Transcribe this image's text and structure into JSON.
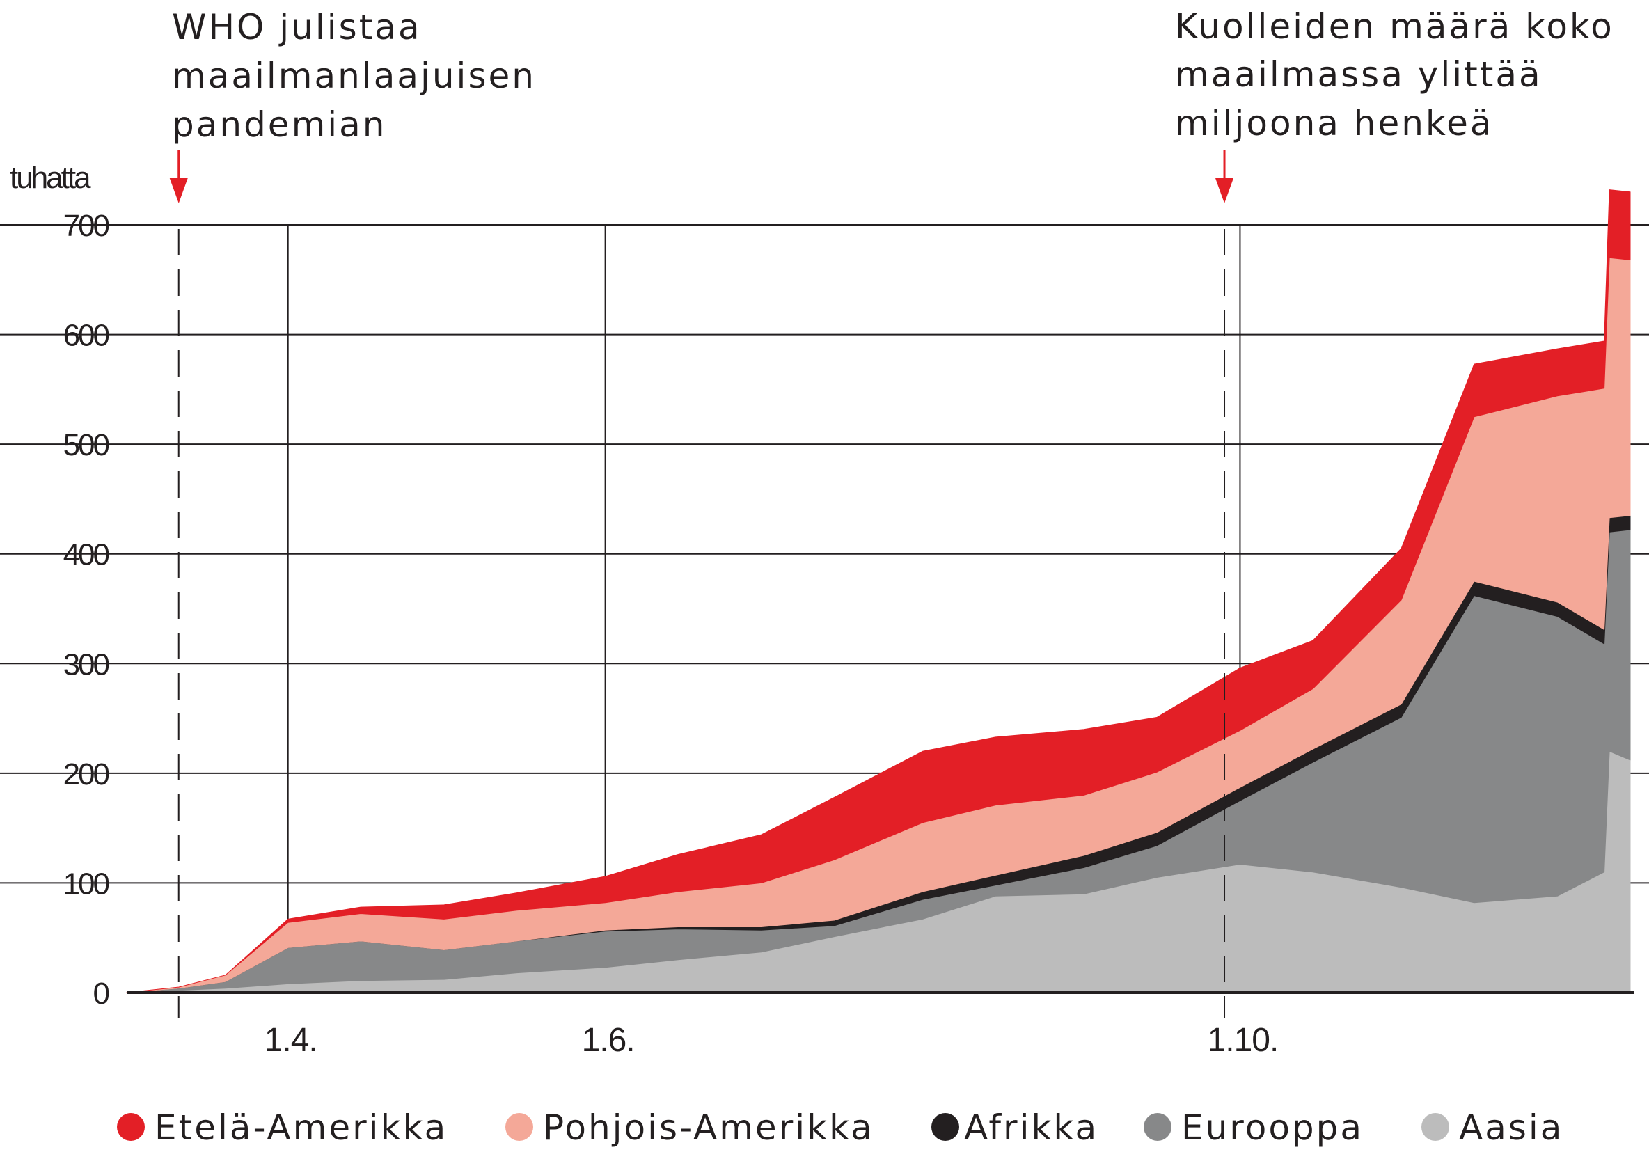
{
  "chart_data": {
    "type": "area",
    "stacked": true,
    "ylabel": "tuhatta",
    "ylim": [
      0,
      700
    ],
    "yticks": [
      0,
      100,
      200,
      300,
      400,
      500,
      600,
      700
    ],
    "ytick_labels": [
      "0",
      "100",
      "200",
      "300",
      "400",
      "500",
      "600",
      "700"
    ],
    "grid": "horizontal",
    "x": [
      "2020-03-01",
      "2020-03-11",
      "2020-03-20",
      "2020-04-01",
      "2020-04-15",
      "2020-05-01",
      "2020-05-15",
      "2020-06-01",
      "2020-06-15",
      "2020-07-01",
      "2020-07-15",
      "2020-08-01",
      "2020-08-15",
      "2020-09-01",
      "2020-09-15",
      "2020-10-01",
      "2020-10-15",
      "2020-11-01",
      "2020-11-15",
      "2020-12-01",
      "2020-12-10",
      "2020-12-11",
      "2020-12-15"
    ],
    "x_ticks": [
      "2020-04-01",
      "2020-06-01",
      "2020-10-01"
    ],
    "x_tick_labels": [
      "1.4.",
      "1.6.",
      "1.10."
    ],
    "series": [
      {
        "name": "Aasia",
        "color": "#bcbcbc",
        "values": [
          0,
          2,
          4,
          8,
          11,
          12,
          18,
          23,
          30,
          37,
          51,
          67,
          88,
          90,
          105,
          117,
          110,
          96,
          82,
          88,
          110,
          220,
          212
        ]
      },
      {
        "name": "Eurooppa",
        "color": "#878889",
        "values": [
          0,
          2,
          6,
          33,
          36,
          27,
          29,
          33,
          28,
          20,
          10,
          18,
          10,
          24,
          29,
          58,
          100,
          155,
          280,
          255,
          208,
          200,
          210
        ]
      },
      {
        "name": "Afrikka",
        "color": "#231f20",
        "values": [
          0,
          0,
          0,
          0,
          0,
          0,
          0,
          1,
          2,
          3,
          5,
          7,
          9,
          11,
          12,
          12,
          12,
          12,
          13,
          13,
          13,
          13,
          13
        ]
      },
      {
        "name": "Pohjois-Amerikka",
        "color": "#f4a898",
        "values": [
          0,
          1,
          6,
          23,
          25,
          28,
          28,
          25,
          32,
          40,
          55,
          63,
          64,
          55,
          55,
          52,
          55,
          95,
          150,
          188,
          220,
          237,
          233
        ]
      },
      {
        "name": "Etelä-Amerikka",
        "color": "#e31f26",
        "values": [
          0,
          0,
          0,
          3,
          6,
          13,
          16,
          24,
          34,
          44,
          57,
          65,
          62,
          60,
          50,
          57,
          44,
          47,
          48,
          43,
          43,
          62,
          62
        ]
      }
    ],
    "annotations": [
      {
        "x": "2020-03-11",
        "text": [
          "WHO julistaa",
          "maailmanlaajuisen",
          "pandemian"
        ]
      },
      {
        "x": "2020-09-28",
        "text": [
          "Kuolleiden määrä koko",
          "maailmassa ylittää",
          "miljoona henkeä"
        ]
      }
    ],
    "legend": {
      "position": "bottom",
      "items": [
        "Etelä-Amerikka",
        "Pohjois-Amerikka",
        "Afrikka",
        "Eurooppa",
        "Aasia"
      ]
    },
    "colors": {
      "annotation_arrow": "#e31f26",
      "grid": "#231f20"
    }
  }
}
